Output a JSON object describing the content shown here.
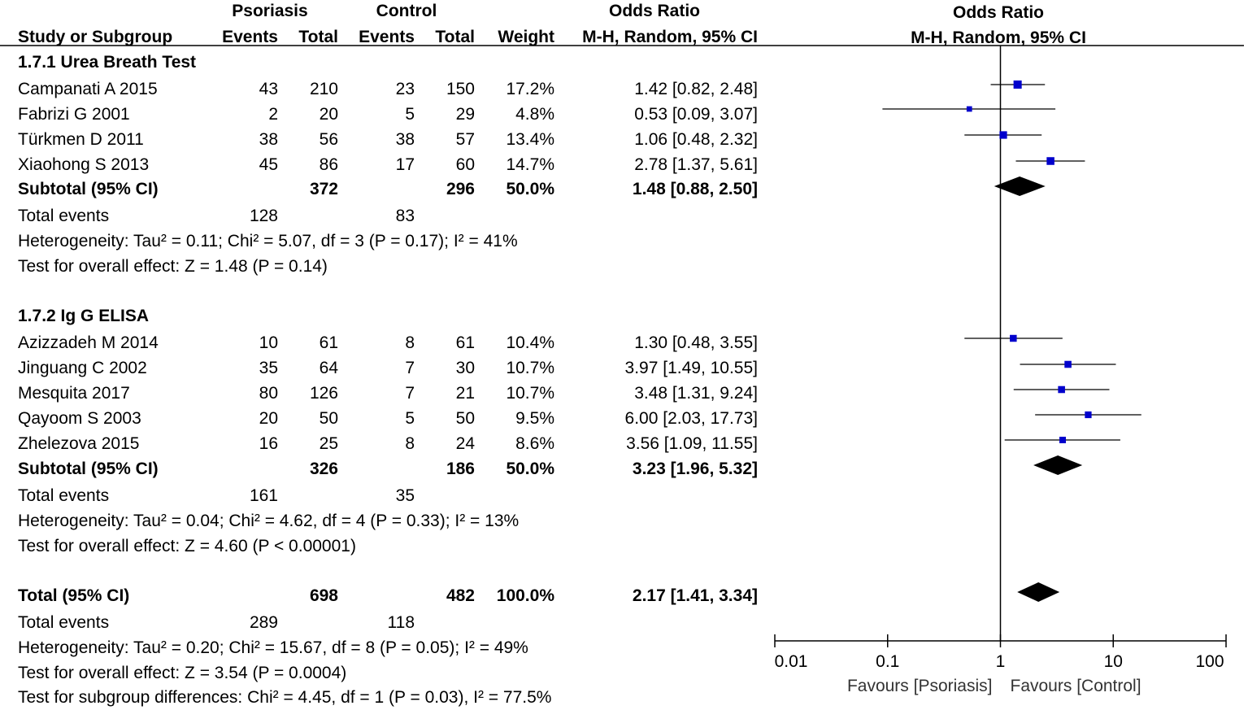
{
  "header": {
    "group1": "Psoriasis",
    "group2": "Control",
    "effect_title": "Odds Ratio",
    "plot_title": "Odds Ratio",
    "col_study": "Study or Subgroup",
    "col_events1": "Events",
    "col_total1": "Total",
    "col_events2": "Events",
    "col_total2": "Total",
    "col_weight": "Weight",
    "col_method": "M-H, Random, 95% CI",
    "plot_method": "M-H, Random, 95% CI"
  },
  "subgroups": [
    {
      "title": "1.7.1 Urea Breath Test",
      "studies": [
        {
          "name": "Campanati A 2015",
          "e1": "43",
          "t1": "210",
          "e2": "23",
          "t2": "150",
          "weight": "17.2%",
          "ci": "1.42 [0.82, 2.48]"
        },
        {
          "name": "Fabrizi G 2001",
          "e1": "2",
          "t1": "20",
          "e2": "5",
          "t2": "29",
          "weight": "4.8%",
          "ci": "0.53 [0.09, 3.07]"
        },
        {
          "name": "Türkmen D 2011",
          "e1": "38",
          "t1": "56",
          "e2": "38",
          "t2": "57",
          "weight": "13.4%",
          "ci": "1.06 [0.48, 2.32]"
        },
        {
          "name": "Xiaohong S 2013",
          "e1": "45",
          "t1": "86",
          "e2": "17",
          "t2": "60",
          "weight": "14.7%",
          "ci": "2.78 [1.37, 5.61]"
        }
      ],
      "subtotal": {
        "label": "Subtotal (95% CI)",
        "t1": "372",
        "t2": "296",
        "weight": "50.0%",
        "ci": "1.48 [0.88, 2.50]"
      },
      "events": {
        "label": "Total events",
        "e1": "128",
        "e2": "83"
      },
      "heterogeneity": "Heterogeneity: Tau² = 0.11; Chi² = 5.07, df = 3 (P = 0.17); I² = 41%",
      "overall": "Test for overall effect: Z = 1.48 (P = 0.14)"
    },
    {
      "title": "1.7.2 Ig G ELISA",
      "studies": [
        {
          "name": "Azizzadeh M 2014",
          "e1": "10",
          "t1": "61",
          "e2": "8",
          "t2": "61",
          "weight": "10.4%",
          "ci": "1.30 [0.48, 3.55]"
        },
        {
          "name": "Jinguang C 2002",
          "e1": "35",
          "t1": "64",
          "e2": "7",
          "t2": "30",
          "weight": "10.7%",
          "ci": "3.97 [1.49, 10.55]"
        },
        {
          "name": "Mesquita 2017",
          "e1": "80",
          "t1": "126",
          "e2": "7",
          "t2": "21",
          "weight": "10.7%",
          "ci": "3.48 [1.31, 9.24]"
        },
        {
          "name": "Qayoom S 2003",
          "e1": "20",
          "t1": "50",
          "e2": "5",
          "t2": "50",
          "weight": "9.5%",
          "ci": "6.00 [2.03, 17.73]"
        },
        {
          "name": "Zhelezova 2015",
          "e1": "16",
          "t1": "25",
          "e2": "8",
          "t2": "24",
          "weight": "8.6%",
          "ci": "3.56 [1.09, 11.55]"
        }
      ],
      "subtotal": {
        "label": "Subtotal (95% CI)",
        "t1": "326",
        "t2": "186",
        "weight": "50.0%",
        "ci": "3.23 [1.96, 5.32]"
      },
      "events": {
        "label": "Total events",
        "e1": "161",
        "e2": "35"
      },
      "heterogeneity": "Heterogeneity: Tau² = 0.04; Chi² = 4.62, df = 4 (P = 0.33); I² = 13%",
      "overall": "Test for overall effect: Z = 4.60 (P < 0.00001)"
    }
  ],
  "total": {
    "label": "Total (95% CI)",
    "t1": "698",
    "t2": "482",
    "weight": "100.0%",
    "ci": "2.17 [1.41, 3.34]",
    "events_label": "Total events",
    "e1": "289",
    "e2": "118",
    "heterogeneity": "Heterogeneity: Tau² = 0.20; Chi² = 15.67, df = 8 (P = 0.05); I² = 49%",
    "overall": "Test for overall effect: Z = 3.54 (P = 0.0004)",
    "subgroup_diff": "Test for subgroup differences: Chi² = 4.45, df = 1 (P = 0.03), I² = 77.5%"
  },
  "chart_data": {
    "type": "forest",
    "title": "Odds Ratio",
    "scale": "log",
    "xlim": [
      0.01,
      100
    ],
    "x_ticks": [
      "0.01",
      "0.1",
      "1",
      "10",
      "100"
    ],
    "x_tick_values": [
      0.01,
      0.1,
      1,
      10,
      100
    ],
    "null_line": 1,
    "favours_left": "Favours [Psoriasis]",
    "favours_right": "Favours [Control]",
    "square_color": "#0000cc",
    "diamond_color": "#000000",
    "studies": [
      {
        "name": "Campanati A 2015",
        "or": 1.42,
        "lo": 0.82,
        "hi": 2.48,
        "weight": 17.2
      },
      {
        "name": "Fabrizi G 2001",
        "or": 0.53,
        "lo": 0.09,
        "hi": 3.07,
        "weight": 4.8
      },
      {
        "name": "Türkmen D 2011",
        "or": 1.06,
        "lo": 0.48,
        "hi": 2.32,
        "weight": 13.4
      },
      {
        "name": "Xiaohong S 2013",
        "or": 2.78,
        "lo": 1.37,
        "hi": 5.61,
        "weight": 14.7
      },
      {
        "name": "Azizzadeh M 2014",
        "or": 1.3,
        "lo": 0.48,
        "hi": 3.55,
        "weight": 10.4
      },
      {
        "name": "Jinguang C 2002",
        "or": 3.97,
        "lo": 1.49,
        "hi": 10.55,
        "weight": 10.7
      },
      {
        "name": "Mesquita 2017",
        "or": 3.48,
        "lo": 1.31,
        "hi": 9.24,
        "weight": 10.7
      },
      {
        "name": "Qayoom S 2003",
        "or": 6.0,
        "lo": 2.03,
        "hi": 17.73,
        "weight": 9.5
      },
      {
        "name": "Zhelezova 2015",
        "or": 3.56,
        "lo": 1.09,
        "hi": 11.55,
        "weight": 8.6
      }
    ],
    "pooled": [
      {
        "name": "Subtotal 1.7.1",
        "or": 1.48,
        "lo": 0.88,
        "hi": 2.5
      },
      {
        "name": "Subtotal 1.7.2",
        "or": 3.23,
        "lo": 1.96,
        "hi": 5.32
      },
      {
        "name": "Total",
        "or": 2.17,
        "lo": 1.41,
        "hi": 3.34
      }
    ]
  }
}
